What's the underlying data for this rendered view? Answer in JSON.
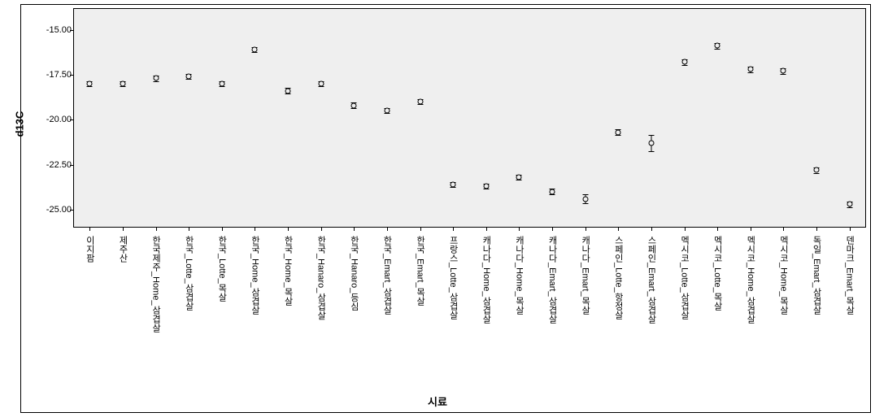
{
  "chart": {
    "type": "errorbar",
    "ylabel": "d13C",
    "xlabel": "시료",
    "ylabel_fontsize": 13,
    "xlabel_fontsize": 13,
    "label_fontweight": "bold",
    "tick_fontsize": 11,
    "background_color": "#ffffff",
    "plot_background_color": "#efefef",
    "border_color": "#000000",
    "marker_style": "open-circle",
    "marker_size": 7,
    "marker_border_color": "#000000",
    "errorbar_color": "#000000",
    "ylim": [
      -26.0,
      -13.8
    ],
    "yticks": [
      -15.0,
      -17.5,
      -20.0,
      -22.5,
      -25.0
    ],
    "ytick_labels": [
      "-15.00",
      "-17.50",
      "-20.00",
      "-22.50",
      "-25.00"
    ],
    "categories": [
      "이지팜",
      "제주산",
      "한국제주_Home_삼겹살",
      "한국_Lotte_삼겹살",
      "한국_Lotte_목살",
      "한국_Home_삼겹살",
      "한국_Home_목살",
      "한국_Hanaro_삼겹살",
      "한국_Hanaro_등심",
      "한국_Emart_삼겹살",
      "한국_Emart_목살",
      "프랑스_Lotte_삼겹살",
      "캐나다_Home_삼겹살",
      "캐나다_Home_목살",
      "캐나다_Emart_삼겹살",
      "캐나다_Emart_목살",
      "스페인_Lotte_항정살",
      "스페인_Emart_삼겹살",
      "멕시코_Lotte_삼겹살",
      "멕시코_Lotte_목살",
      "멕시코_Home_삼겹살",
      "멕시코_Home_목살",
      "독일_Emart_삼겹살",
      "덴마크_Emart_목살"
    ],
    "values": [
      -18.0,
      -18.0,
      -17.7,
      -17.6,
      -18.0,
      -16.1,
      -18.4,
      -18.0,
      -19.2,
      -19.5,
      -19.0,
      -23.6,
      -23.7,
      -23.2,
      -24.0,
      -24.4,
      -20.7,
      -21.3,
      -16.8,
      -15.9,
      -17.2,
      -17.3,
      -22.8,
      -24.7
    ],
    "errors": [
      0.15,
      0.15,
      0.15,
      0.15,
      0.15,
      0.15,
      0.15,
      0.15,
      0.15,
      0.15,
      0.15,
      0.15,
      0.15,
      0.15,
      0.15,
      0.25,
      0.15,
      0.45,
      0.15,
      0.15,
      0.15,
      0.15,
      0.15,
      0.15
    ]
  }
}
